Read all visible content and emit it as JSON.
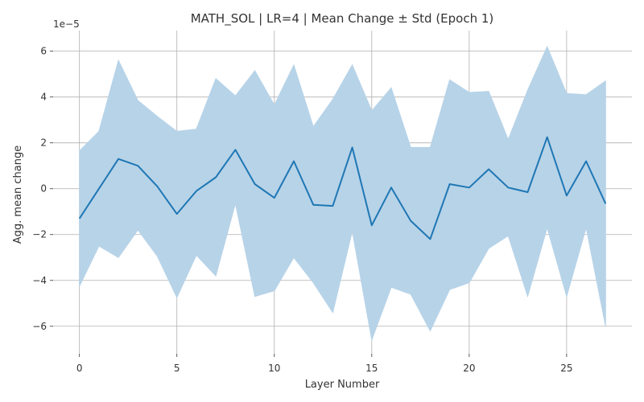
{
  "chart_data": {
    "type": "line",
    "title": "MATH_SOL | LR=4 | Mean Change ± Std (Epoch 1)",
    "xlabel": "Layer Number",
    "ylabel": "Agg. mean change",
    "offset_label": "1e−5",
    "xlim": [
      -1.35,
      28.35
    ],
    "ylim": [
      -7.2,
      6.9
    ],
    "x_ticks": [
      0,
      5,
      10,
      15,
      20,
      25
    ],
    "x_tick_labels": [
      "0",
      "5",
      "10",
      "15",
      "20",
      "25"
    ],
    "y_ticks": [
      -6,
      -4,
      -2,
      0,
      2,
      4,
      6
    ],
    "y_tick_labels": [
      "−6",
      "−4",
      "−2",
      "0",
      "2",
      "4",
      "6"
    ],
    "grid": true,
    "legend": "none",
    "series": [
      {
        "x": [
          0,
          1,
          2,
          3,
          4,
          5,
          6,
          7,
          8,
          9,
          10,
          11,
          12,
          13,
          14,
          15,
          16,
          17,
          18,
          19,
          20,
          21,
          22,
          23,
          24,
          25,
          26,
          27
        ],
        "mean": [
          -1.3,
          0.0,
          1.3,
          1.0,
          0.1,
          -1.1,
          -0.1,
          0.5,
          1.7,
          0.2,
          -0.4,
          1.2,
          -0.7,
          -0.75,
          1.8,
          -1.6,
          0.05,
          -1.4,
          -2.2,
          0.2,
          0.05,
          0.85,
          0.05,
          -0.15,
          2.25,
          -0.3,
          1.2,
          -0.65
        ],
        "upper": [
          1.65,
          2.5,
          5.6,
          3.85,
          3.15,
          2.5,
          2.6,
          4.8,
          4.05,
          5.15,
          3.65,
          5.4,
          2.7,
          3.9,
          5.4,
          3.4,
          4.4,
          1.8,
          1.8,
          4.75,
          4.2,
          4.25,
          2.15,
          4.3,
          6.2,
          4.15,
          4.1,
          4.7
        ],
        "lower": [
          -4.25,
          -2.5,
          -3.0,
          -1.8,
          -2.95,
          -4.75,
          -2.9,
          -3.8,
          -0.65,
          -4.7,
          -4.45,
          -3.0,
          -4.1,
          -5.4,
          -1.85,
          -6.6,
          -4.3,
          -4.6,
          -6.2,
          -4.4,
          -4.1,
          -2.6,
          -2.05,
          -4.7,
          -1.7,
          -4.7,
          -1.7,
          -6.0
        ],
        "line_color": "#1f77b4",
        "band_color": "#b7d3e8"
      }
    ]
  }
}
